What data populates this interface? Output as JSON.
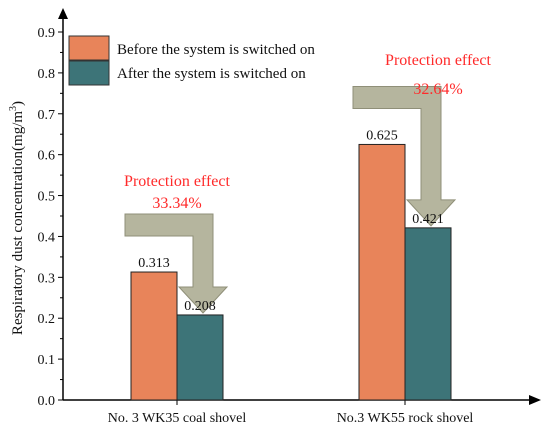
{
  "chart_data": {
    "type": "bar",
    "title": "",
    "xlabel": "",
    "ylabel": "Respiratory dust concentration(mg/m",
    "ylabel_superscript": "3",
    "ylabel_suffix": ")",
    "ylim": [
      0,
      0.9
    ],
    "yticks": [
      "0.0",
      "0.1",
      "0.2",
      "0.3",
      "0.4",
      "0.5",
      "0.6",
      "0.7",
      "0.8",
      "0.9"
    ],
    "categories": [
      "No. 3 WK35 coal shovel",
      "No.3 WK55 rock shovel"
    ],
    "series": [
      {
        "name": "Before the system is switched on",
        "values": [
          0.313,
          0.625
        ],
        "labels": [
          "0.313",
          "0.625"
        ],
        "color": "#E8845A"
      },
      {
        "name": "After the system is switched on",
        "values": [
          0.208,
          0.421
        ],
        "labels": [
          "0.208",
          "0.421"
        ],
        "color": "#3D7478"
      }
    ],
    "legend_position": "top-left",
    "grid": false,
    "annotations": [
      {
        "title": "Protection effect",
        "value": "33.34%",
        "color": "#FF2A2A"
      },
      {
        "title": "Protection effect",
        "value": "32.64%",
        "color": "#FF2A2A"
      }
    ],
    "arrow_color": "#B5B59E"
  }
}
